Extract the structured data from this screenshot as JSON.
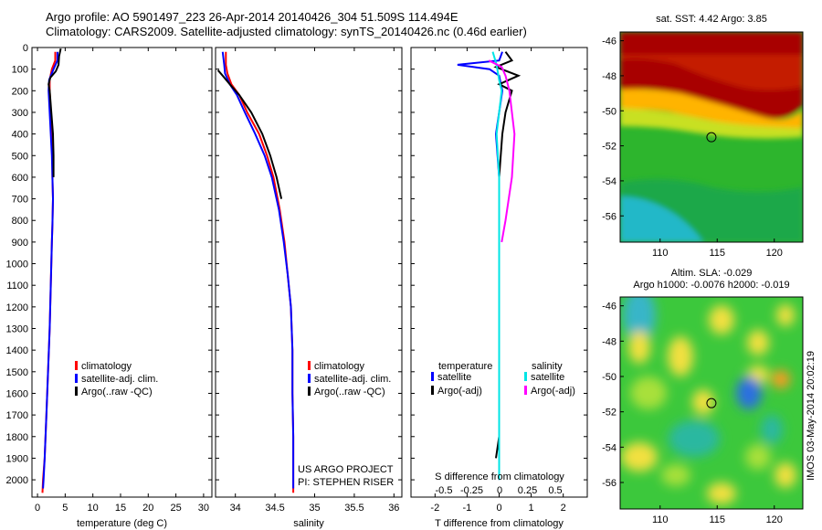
{
  "header": {
    "line1": "Argo profile: AO 5901497_223 26-Apr-2014 20140426_304 51.509S 114.494E",
    "line2": "Climatology: CARS2009. Satellite-adjusted climatology: synTS_20140426.nc (0.46d earlier)"
  },
  "colors": {
    "climatology": "#ff0000",
    "satellite": "#0000ff",
    "argo": "#000000",
    "satellite_salinity": "#00e5e5",
    "argo_salinity": "#ff00ff"
  },
  "credits": {
    "project": "US ARGO PROJECT",
    "pi": "PI: STEPHEN RISER"
  },
  "stamp": "IMOS 03-May-2014 20:02:19",
  "chart_data": [
    {
      "id": "temperature",
      "type": "line",
      "xlabel": "temperature (deg C)",
      "xlim": [
        -1,
        31.5
      ],
      "xticks": [
        0,
        5,
        10,
        15,
        20,
        25,
        30
      ],
      "ylim": [
        2080,
        0
      ],
      "yticks": [
        0,
        100,
        200,
        300,
        400,
        500,
        600,
        700,
        800,
        900,
        1000,
        1100,
        1200,
        1300,
        1400,
        1500,
        1600,
        1700,
        1800,
        1900,
        2000
      ],
      "legend": [
        "climatology",
        "satellite-adj. clim.",
        "Argo(..raw -QC)"
      ],
      "series": [
        {
          "name": "climatology",
          "color": "red",
          "points": [
            [
              3.2,
              20
            ],
            [
              3.2,
              60
            ],
            [
              2.6,
              100
            ],
            [
              2.2,
              150
            ],
            [
              2.2,
              200
            ],
            [
              2.4,
              300
            ],
            [
              2.6,
              400
            ],
            [
              2.7,
              500
            ],
            [
              2.7,
              600
            ],
            [
              2.8,
              700
            ],
            [
              2.7,
              820
            ],
            [
              2.6,
              900
            ],
            [
              2.4,
              1100
            ],
            [
              2.2,
              1300
            ],
            [
              1.9,
              1500
            ],
            [
              1.6,
              1700
            ],
            [
              1.3,
              1900
            ],
            [
              1.0,
              2000
            ],
            [
              0.9,
              2060
            ]
          ]
        },
        {
          "name": "satellite-adj. clim.",
          "color": "blue",
          "points": [
            [
              3.6,
              20
            ],
            [
              3.6,
              60
            ],
            [
              2.9,
              100
            ],
            [
              2.1,
              150
            ],
            [
              2.0,
              200
            ],
            [
              2.2,
              300
            ],
            [
              2.4,
              400
            ],
            [
              2.6,
              500
            ],
            [
              2.7,
              600
            ],
            [
              2.8,
              700
            ],
            [
              2.7,
              820
            ],
            [
              2.6,
              900
            ],
            [
              2.4,
              1100
            ],
            [
              2.2,
              1300
            ],
            [
              1.9,
              1500
            ],
            [
              1.6,
              1700
            ],
            [
              1.3,
              1900
            ],
            [
              1.1,
              2000
            ],
            [
              1.0,
              2040
            ]
          ]
        },
        {
          "name": "Argo(..raw -QC)",
          "color": "black",
          "points": [
            [
              4.2,
              5
            ],
            [
              3.9,
              40
            ],
            [
              3.8,
              80
            ],
            [
              3.3,
              110
            ],
            [
              2.3,
              140
            ],
            [
              2.0,
              170
            ],
            [
              2.2,
              200
            ],
            [
              2.5,
              300
            ],
            [
              2.8,
              400
            ],
            [
              2.9,
              500
            ],
            [
              2.9,
              600
            ]
          ]
        }
      ]
    },
    {
      "id": "salinity",
      "type": "line",
      "xlabel": "salinity",
      "xlim": [
        33.75,
        36.1
      ],
      "xticks": [
        34,
        34.5,
        35,
        35.5,
        36
      ],
      "ylim": [
        2080,
        0
      ],
      "legend": [
        "climatology",
        "satellite-adj. clim.",
        "Argo(..raw -QC)"
      ],
      "series": [
        {
          "name": "climatology",
          "color": "red",
          "points": [
            [
              33.88,
              20
            ],
            [
              33.88,
              80
            ],
            [
              33.9,
              120
            ],
            [
              33.95,
              170
            ],
            [
              34.05,
              220
            ],
            [
              34.15,
              300
            ],
            [
              34.3,
              400
            ],
            [
              34.4,
              500
            ],
            [
              34.48,
              600
            ],
            [
              34.56,
              750
            ],
            [
              34.62,
              900
            ],
            [
              34.66,
              1050
            ],
            [
              34.7,
              1200
            ],
            [
              34.72,
              1400
            ],
            [
              34.72,
              1600
            ],
            [
              34.73,
              1800
            ],
            [
              34.73,
              2000
            ],
            [
              34.73,
              2060
            ]
          ]
        },
        {
          "name": "satellite-adj. clim.",
          "color": "blue",
          "points": [
            [
              33.84,
              20
            ],
            [
              33.86,
              80
            ],
            [
              33.87,
              120
            ],
            [
              33.93,
              170
            ],
            [
              34.02,
              220
            ],
            [
              34.12,
              300
            ],
            [
              34.25,
              400
            ],
            [
              34.37,
              500
            ],
            [
              34.46,
              600
            ],
            [
              34.55,
              750
            ],
            [
              34.61,
              900
            ],
            [
              34.66,
              1050
            ],
            [
              34.7,
              1200
            ],
            [
              34.72,
              1400
            ],
            [
              34.72,
              1600
            ],
            [
              34.73,
              1800
            ],
            [
              34.73,
              2000
            ],
            [
              34.73,
              2040
            ]
          ]
        },
        {
          "name": "Argo(..raw -QC)",
          "color": "black",
          "points": [
            [
              33.78,
              105
            ],
            [
              33.84,
              130
            ],
            [
              33.93,
              170
            ],
            [
              34.05,
              220
            ],
            [
              34.2,
              300
            ],
            [
              34.34,
              400
            ],
            [
              34.44,
              500
            ],
            [
              34.52,
              600
            ],
            [
              34.58,
              700
            ]
          ]
        }
      ]
    },
    {
      "id": "difference",
      "type": "line",
      "xlabel": "T difference from climatology",
      "top_label": "S difference from climatology",
      "xlim": [
        -2.75,
        2.75
      ],
      "xticks": [
        -2,
        -1,
        0,
        1,
        2
      ],
      "xticks_top": [
        "-0.5",
        "-0.25",
        "0",
        "0.25",
        "0.5"
      ],
      "ylim": [
        2080,
        0
      ],
      "legend_temperature": {
        "title": "temperature",
        "items": [
          "satellite",
          "Argo(-adj)"
        ]
      },
      "legend_salinity": {
        "title": "salinity",
        "items": [
          "satellite",
          "Argo(-adj)"
        ]
      },
      "series": [
        {
          "name": "temperature satellite",
          "color": "blue",
          "points": [
            [
              0.1,
              20
            ],
            [
              0,
              60
            ],
            [
              -1.3,
              80
            ],
            [
              -0.3,
              100
            ],
            [
              0,
              130
            ],
            [
              0.1,
              200
            ],
            [
              0,
              300
            ],
            [
              -0.1,
              400
            ],
            [
              0,
              600
            ],
            [
              0,
              800
            ],
            [
              0,
              1000
            ],
            [
              0,
              1200
            ],
            [
              0,
              1400
            ],
            [
              0,
              1600
            ],
            [
              0,
              1800
            ],
            [
              0,
              2000
            ]
          ]
        },
        {
          "name": "temperature Argo(-adj)",
          "color": "black",
          "points": [
            [
              0.2,
              20
            ],
            [
              0.4,
              60
            ],
            [
              -0.1,
              90
            ],
            [
              0.6,
              130
            ],
            [
              0,
              170
            ],
            [
              0.4,
              200
            ],
            [
              0.2,
              300
            ],
            [
              0.1,
              400
            ],
            [
              0,
              600
            ],
            [
              0,
              800
            ],
            [
              0,
              1000
            ],
            [
              0,
              1200
            ],
            [
              0,
              1400
            ],
            [
              0,
              1600
            ],
            [
              0,
              1800
            ],
            [
              -0.1,
              1900
            ]
          ]
        },
        {
          "name": "salinity satellite",
          "color": "cyan",
          "points": [
            [
              -0.05,
              20
            ],
            [
              -0.02,
              80
            ],
            [
              0,
              150
            ],
            [
              0.02,
              200
            ],
            [
              0,
              300
            ],
            [
              -0.02,
              400
            ],
            [
              0,
              600
            ],
            [
              0,
              800
            ],
            [
              0,
              1000
            ],
            [
              0,
              1200
            ],
            [
              0,
              1400
            ],
            [
              0,
              1600
            ],
            [
              0,
              1800
            ],
            [
              0,
              2000
            ]
          ]
        },
        {
          "name": "salinity Argo(-adj)",
          "color": "magenta",
          "points": [
            [
              -0.08,
              60
            ],
            [
              0.02,
              90
            ],
            [
              0.05,
              130
            ],
            [
              0.08,
              200
            ],
            [
              0.1,
              300
            ],
            [
              0.12,
              400
            ],
            [
              0.1,
              600
            ],
            [
              0.05,
              800
            ],
            [
              0.02,
              900
            ]
          ]
        }
      ]
    },
    {
      "id": "sst_map",
      "type": "heatmap",
      "title": "sat. SST: 4.42  Argo: 3.85",
      "xticks": [
        110,
        115,
        120
      ],
      "yticks": [
        -46,
        -48,
        -50,
        -52,
        -54,
        -56
      ],
      "xlim": [
        106.5,
        122.5
      ],
      "ylim": [
        -57.5,
        -45.5
      ],
      "marker": {
        "lon": 114.494,
        "lat": -51.509
      }
    },
    {
      "id": "sla_map",
      "type": "heatmap",
      "title_line1": "Altim. SLA: -0.029",
      "title_line2": "Argo h1000: -0.0076  h2000: -0.019",
      "xticks": [
        110,
        115,
        120
      ],
      "yticks": [
        -46,
        -48,
        -50,
        -52,
        -54,
        -56
      ],
      "xlim": [
        106.5,
        122.5
      ],
      "ylim": [
        -57.5,
        -45.5
      ],
      "marker": {
        "lon": 114.494,
        "lat": -51.509
      }
    }
  ]
}
